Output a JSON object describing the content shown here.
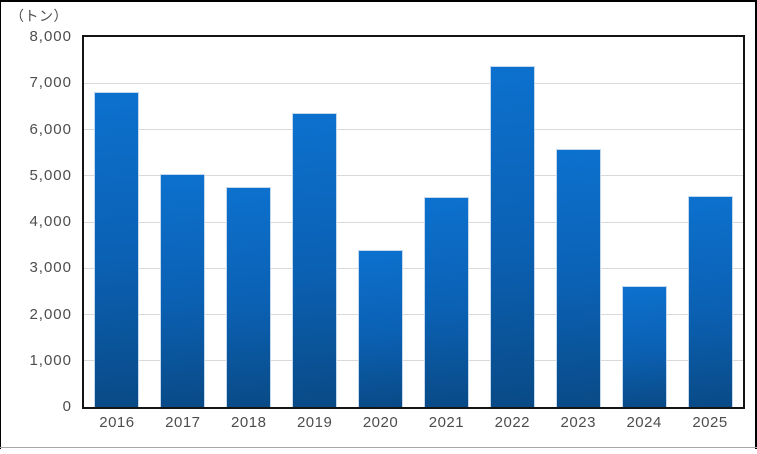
{
  "chart_data": {
    "type": "bar",
    "unit_label": "（トン）",
    "categories": [
      "2016",
      "2017",
      "2018",
      "2019",
      "2020",
      "2021",
      "2022",
      "2023",
      "2024",
      "2025"
    ],
    "values": [
      6810,
      5040,
      4750,
      6360,
      3400,
      4530,
      7370,
      5580,
      2610,
      4560
    ],
    "ylim": [
      0,
      8000
    ],
    "yticks": [
      {
        "value": 0,
        "label": "0"
      },
      {
        "value": 1000,
        "label": "1,000"
      },
      {
        "value": 2000,
        "label": "2,000"
      },
      {
        "value": 3000,
        "label": "3,000"
      },
      {
        "value": 4000,
        "label": "4,000"
      },
      {
        "value": 5000,
        "label": "5,000"
      },
      {
        "value": 6000,
        "label": "6,000"
      },
      {
        "value": 7000,
        "label": "7,000"
      },
      {
        "value": 8000,
        "label": "8,000"
      }
    ],
    "grid": true,
    "legend": "none",
    "colors": {
      "bar_top": "#0c71ce",
      "bar_mid": "#0b60b2",
      "bar_bottom": "#094a86",
      "bar_outline": "#c3d8ec",
      "gridline": "#d9d9d9",
      "axis": "#141414",
      "tick_label": "#4d4d4d",
      "background": "#ffffff",
      "frame_border": "#000000"
    }
  }
}
